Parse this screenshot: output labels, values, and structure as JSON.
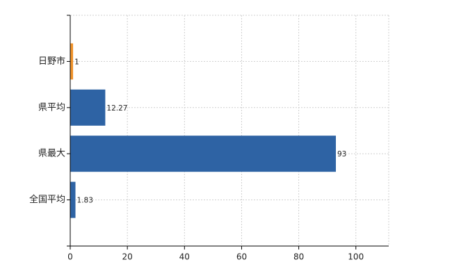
{
  "chart_data": {
    "type": "hbar",
    "categories": [
      "日野市",
      "県平均",
      "県最大",
      "全国平均"
    ],
    "values": [
      1,
      12.27,
      93,
      1.83
    ],
    "colors": [
      "#f0932b",
      "#2e63a4",
      "#2e63a4",
      "#2e63a4"
    ],
    "xlim": [
      0,
      111.5
    ],
    "xticks": [
      0,
      20,
      40,
      60,
      80,
      100
    ],
    "grid": true
  }
}
